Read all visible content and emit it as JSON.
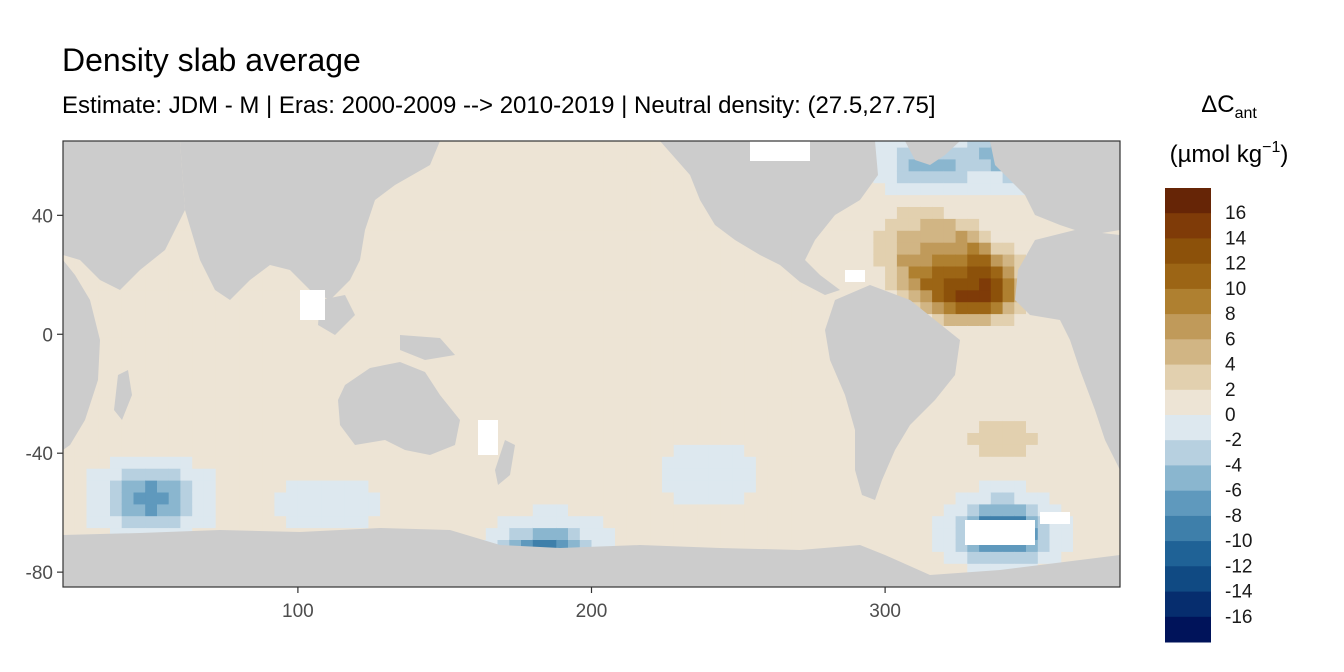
{
  "title": "Density slab average",
  "subtitle": "Estimate: JDM - M | Eras: 2000-2009 --> 2010-2019 | Neutral density: (27.5,27.75]",
  "chart_data": {
    "type": "heatmap",
    "title": "Density slab average",
    "subtitle": "Estimate: JDM - M | Eras: 2000-2009 --> 2010-2019 | Neutral density: (27.5,27.75]",
    "xlabel": "",
    "ylabel": "",
    "xlim": [
      20,
      380
    ],
    "ylim": [
      -85,
      65
    ],
    "x_ticks": [
      100,
      200,
      300
    ],
    "y_ticks": [
      40,
      0,
      -40,
      -80
    ],
    "grid": false,
    "legend": {
      "position": "right",
      "title_main": "ΔC",
      "title_sub": "ant",
      "units_prefix": "(µmol kg",
      "units_sup": "−1",
      "units_suffix": ")",
      "levels": [
        {
          "label": "16",
          "color": "#662506"
        },
        {
          "label": "14",
          "color": "#7f3b08"
        },
        {
          "label": "12",
          "color": "#8c510a"
        },
        {
          "label": "10",
          "color": "#9c6515"
        },
        {
          "label": "8",
          "color": "#af8030"
        },
        {
          "label": "6",
          "color": "#c09a5a"
        },
        {
          "label": "4",
          "color": "#d1b584"
        },
        {
          "label": "2",
          "color": "#e2d0af"
        },
        {
          "label": "0",
          "color": "#ede4d5"
        },
        {
          "label": "-2",
          "color": "#dde8ef"
        },
        {
          "label": "-4",
          "color": "#b7d0e0"
        },
        {
          "label": "-6",
          "color": "#8ab6cf"
        },
        {
          "label": "-8",
          "color": "#5f99bd"
        },
        {
          "label": "-10",
          "color": "#3e7faa"
        },
        {
          "label": "-12",
          "color": "#1f6296"
        },
        {
          "label": "-14",
          "color": "#104a83"
        },
        {
          "label": "-16",
          "color": "#062d6e"
        },
        {
          "label": "",
          "color": "#00135a"
        }
      ]
    },
    "land_color": "#cccccc",
    "nodata_color": "#ffffff",
    "background_value": -0.5,
    "regions": [
      {
        "name": "north-atlantic-max",
        "lon": 330,
        "lat": 15,
        "value": 15
      },
      {
        "name": "north-atlantic-core",
        "lon": 322,
        "lat": 22,
        "value": 10
      },
      {
        "name": "north-atlantic-wide",
        "lon": 318,
        "lat": 28,
        "value": 5
      },
      {
        "name": "north-atlantic-outer",
        "lon": 310,
        "lat": 35,
        "value": 2
      },
      {
        "name": "north-pacific-east",
        "lon": 225,
        "lat": 15,
        "value": 1
      },
      {
        "name": "equatorial-pacific",
        "lon": 200,
        "lat": 0,
        "value": 1
      },
      {
        "name": "south-pacific",
        "lon": 200,
        "lat": -30,
        "value": 1
      },
      {
        "name": "south-atlantic",
        "lon": 340,
        "lat": -35,
        "value": 2
      },
      {
        "name": "south-pacific-band",
        "lon": 240,
        "lat": -47,
        "value": -3
      },
      {
        "name": "labrador-sea",
        "lon": 315,
        "lat": 57,
        "value": -6
      },
      {
        "name": "nordic-seas",
        "lon": 345,
        "lat": 62,
        "value": -8
      },
      {
        "name": "weddell-sea",
        "lon": 340,
        "lat": -66,
        "value": -12
      },
      {
        "name": "ross-sea",
        "lon": 185,
        "lat": -74,
        "value": -11
      },
      {
        "name": "indian-southern",
        "lon": 50,
        "lat": -55,
        "value": -9
      },
      {
        "name": "indian-southern-east",
        "lon": 110,
        "lat": -60,
        "value": -4
      },
      {
        "name": "south-indian-band",
        "lon": 110,
        "lat": -65,
        "value": 1
      }
    ]
  }
}
